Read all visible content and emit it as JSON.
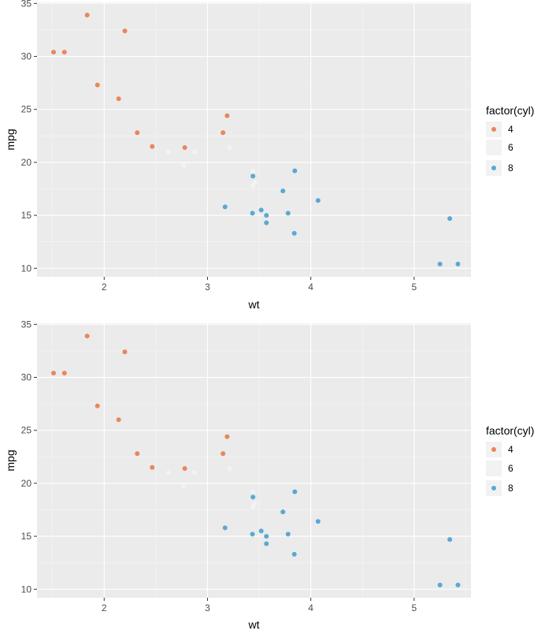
{
  "chart_data": [
    {
      "type": "scatter",
      "xlabel": "wt",
      "ylabel": "mpg",
      "xlim": [
        1.35,
        5.55
      ],
      "ylim": [
        9.2,
        35.1
      ],
      "xticks": [
        2,
        3,
        4,
        5
      ],
      "yticks": [
        10,
        15,
        20,
        25,
        30,
        35
      ],
      "grid": true,
      "legend": {
        "title": "factor(cyl)",
        "position": "right"
      },
      "series": [
        {
          "name": "4",
          "color": "#E8875A",
          "points": [
            [
              1.51,
              30.4
            ],
            [
              1.615,
              30.4
            ],
            [
              1.835,
              33.9
            ],
            [
              1.935,
              27.3
            ],
            [
              2.14,
              26.0
            ],
            [
              2.2,
              32.4
            ],
            [
              2.32,
              22.8
            ],
            [
              2.465,
              21.5
            ],
            [
              2.78,
              21.4
            ],
            [
              3.15,
              22.8
            ],
            [
              3.19,
              24.4
            ]
          ]
        },
        {
          "name": "6",
          "color": "#F3F3F3",
          "points": [
            [
              2.62,
              21.0
            ],
            [
              2.77,
              19.7
            ],
            [
              2.875,
              21.0
            ],
            [
              3.215,
              21.4
            ],
            [
              3.44,
              19.2
            ],
            [
              3.44,
              17.8
            ],
            [
              3.46,
              18.1
            ]
          ]
        },
        {
          "name": "8",
          "color": "#5AA8D4",
          "points": [
            [
              3.17,
              15.8
            ],
            [
              3.435,
              15.2
            ],
            [
              3.44,
              18.7
            ],
            [
              3.52,
              15.5
            ],
            [
              3.57,
              15.0
            ],
            [
              3.57,
              14.3
            ],
            [
              3.73,
              17.3
            ],
            [
              3.78,
              15.2
            ],
            [
              3.84,
              13.3
            ],
            [
              3.845,
              19.2
            ],
            [
              4.07,
              16.4
            ],
            [
              5.25,
              10.4
            ],
            [
              5.345,
              14.7
            ],
            [
              5.424,
              10.4
            ]
          ]
        }
      ]
    },
    {
      "type": "scatter",
      "xlabel": "wt",
      "ylabel": "mpg",
      "xlim": [
        1.35,
        5.55
      ],
      "ylim": [
        9.2,
        35.1
      ],
      "xticks": [
        2,
        3,
        4,
        5
      ],
      "yticks": [
        10,
        15,
        20,
        25,
        30,
        35
      ],
      "grid": true,
      "legend": {
        "title": "factor(cyl)",
        "position": "right"
      },
      "series": [
        {
          "name": "4",
          "color": "#E8875A",
          "points": [
            [
              1.51,
              30.4
            ],
            [
              1.615,
              30.4
            ],
            [
              1.835,
              33.9
            ],
            [
              1.935,
              27.3
            ],
            [
              2.14,
              26.0
            ],
            [
              2.2,
              32.4
            ],
            [
              2.32,
              22.8
            ],
            [
              2.465,
              21.5
            ],
            [
              2.78,
              21.4
            ],
            [
              3.15,
              22.8
            ],
            [
              3.19,
              24.4
            ]
          ]
        },
        {
          "name": "6",
          "color": "#F3F3F3",
          "points": [
            [
              2.62,
              21.0
            ],
            [
              2.77,
              19.7
            ],
            [
              2.875,
              21.0
            ],
            [
              3.215,
              21.4
            ],
            [
              3.44,
              19.2
            ],
            [
              3.44,
              17.8
            ],
            [
              3.46,
              18.1
            ]
          ]
        },
        {
          "name": "8",
          "color": "#5AA8D4",
          "points": [
            [
              3.17,
              15.8
            ],
            [
              3.435,
              15.2
            ],
            [
              3.44,
              18.7
            ],
            [
              3.52,
              15.5
            ],
            [
              3.57,
              15.0
            ],
            [
              3.57,
              14.3
            ],
            [
              3.73,
              17.3
            ],
            [
              3.78,
              15.2
            ],
            [
              3.84,
              13.3
            ],
            [
              3.845,
              19.2
            ],
            [
              4.07,
              16.4
            ],
            [
              5.25,
              10.4
            ],
            [
              5.345,
              14.7
            ],
            [
              5.424,
              10.4
            ]
          ]
        }
      ]
    }
  ]
}
